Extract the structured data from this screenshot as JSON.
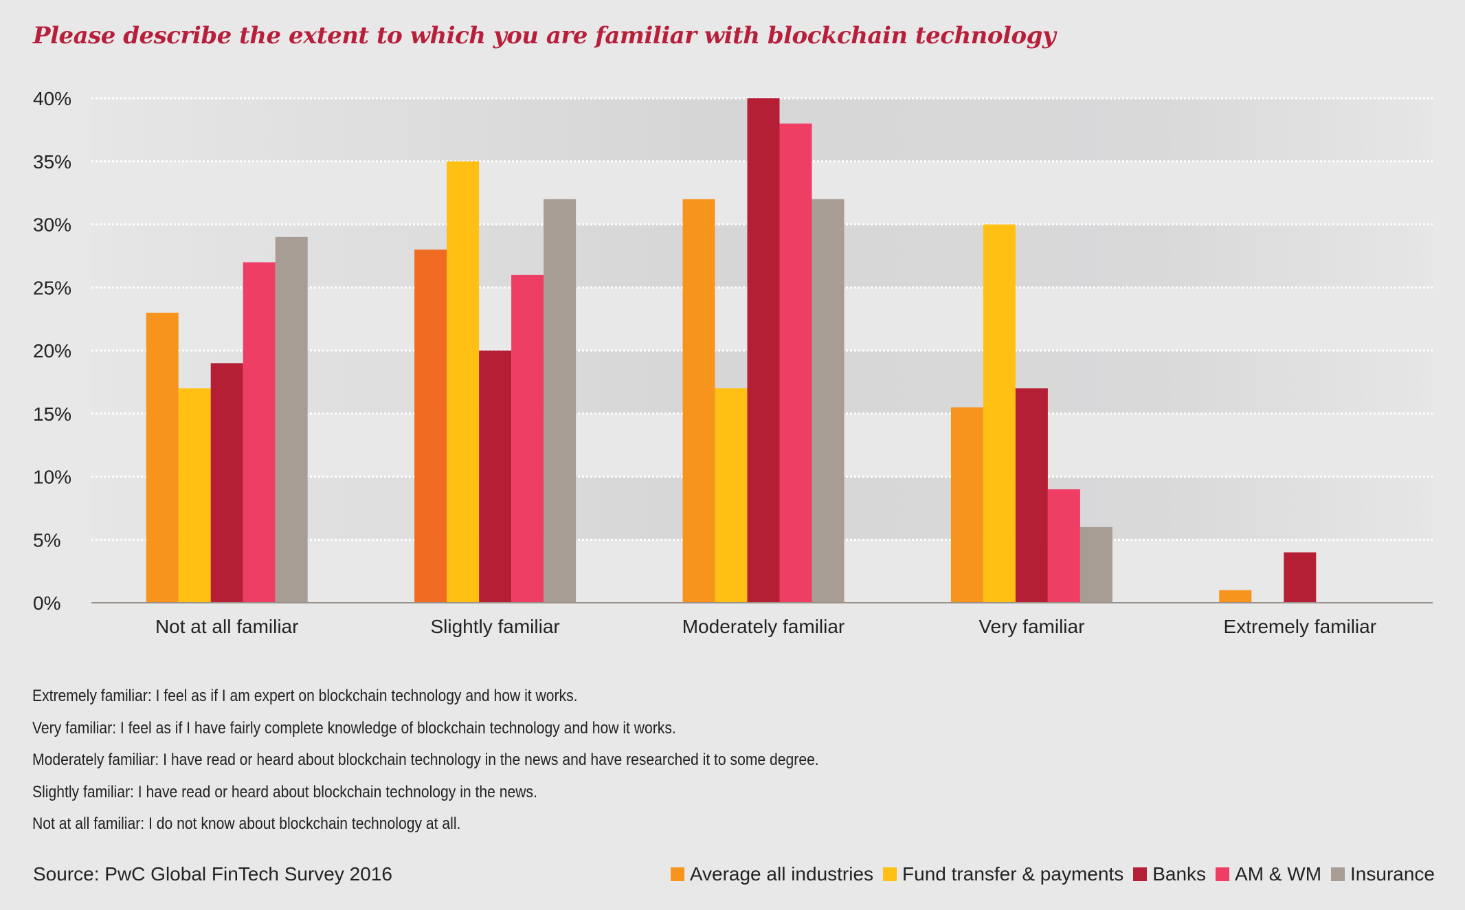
{
  "chart_data": {
    "type": "bar",
    "title": "Please describe the extent to which you are familiar with blockchain technology",
    "xlabel": "",
    "ylabel": "",
    "ylim": [
      0,
      40
    ],
    "yticks": [
      "0%",
      "5%",
      "10%",
      "15%",
      "20%",
      "25%",
      "30%",
      "35%",
      "40%"
    ],
    "grid": true,
    "legend_position": "bottom-right",
    "categories": [
      "Not at all familiar",
      "Slightly familiar",
      "Moderately familiar",
      "Very familiar",
      "Extremely familiar"
    ],
    "series": [
      {
        "name": "Average all industries",
        "color": "#f7941e",
        "values": [
          23,
          28,
          32,
          15.5,
          1
        ]
      },
      {
        "name": "Fund transfer & payments",
        "color": "#ffbf13",
        "values": [
          17,
          35,
          17,
          30,
          0
        ]
      },
      {
        "name": "Banks",
        "color": "#b51f35",
        "values": [
          19,
          20,
          40,
          17,
          4
        ]
      },
      {
        "name": "AM & WM",
        "color": "#ee3e64",
        "values": [
          27,
          26,
          38,
          9,
          0
        ]
      },
      {
        "name": "Insurance",
        "color": "#a79d94",
        "values": [
          29,
          32,
          32,
          6,
          0
        ]
      }
    ]
  },
  "definitions": [
    "Extremely familiar: I feel as if I am expert on blockchain technology and how it works.",
    "Very familiar: I feel as if I have fairly complete knowledge of blockchain technology and how it works.",
    "Moderately familiar: I have read or heard about blockchain technology in the news and have researched it to some degree.",
    "Slightly familiar: I have read or heard about blockchain technology in the news.",
    "Not at all familiar: I do not know about blockchain technology at all."
  ],
  "source": "Source: PwC Global FinTech Survey 2016"
}
